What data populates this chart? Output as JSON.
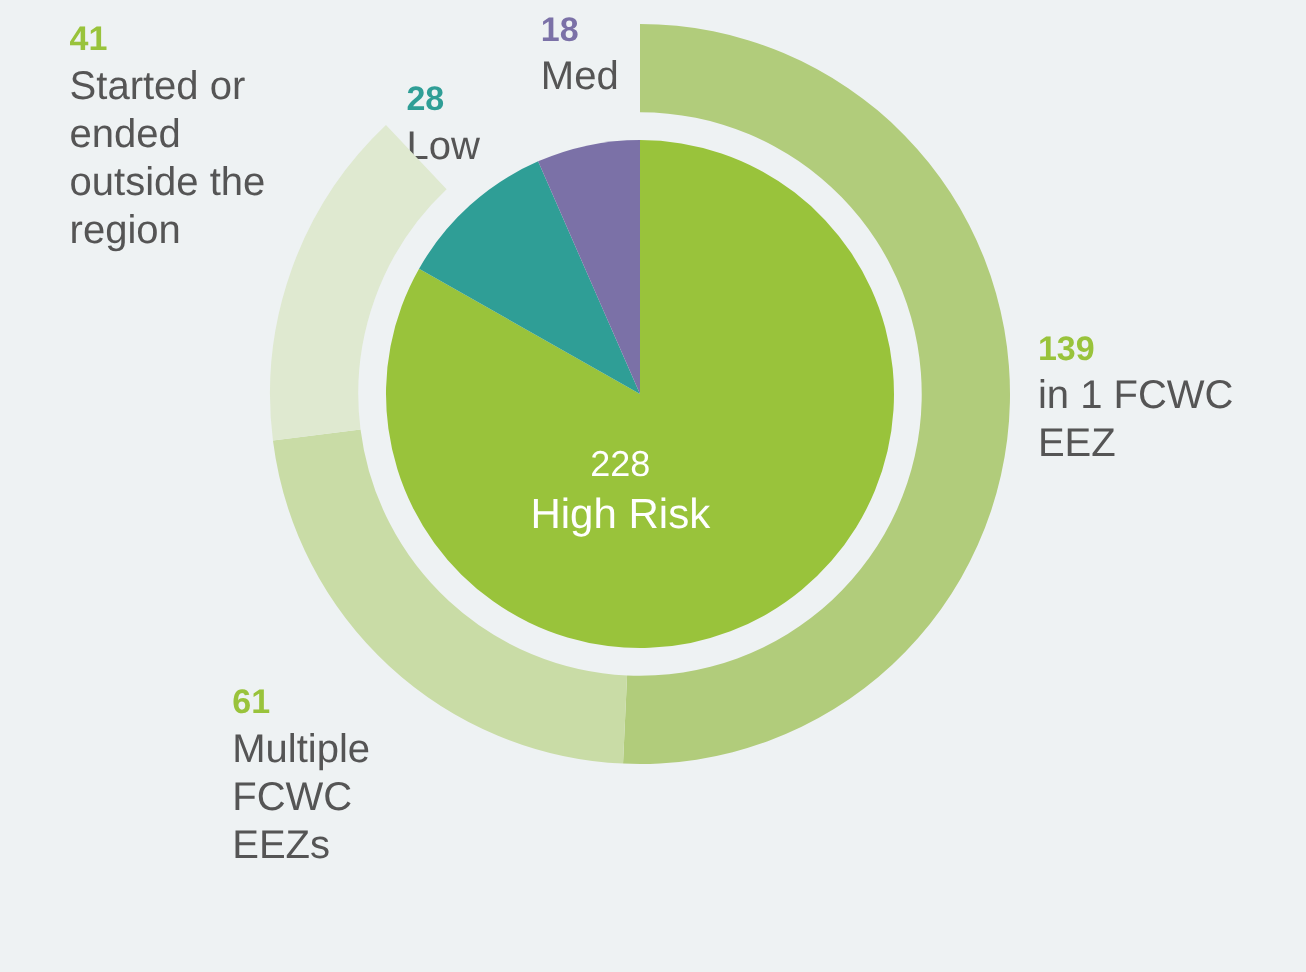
{
  "chart_data": [
    {
      "type": "pie",
      "categories": [
        "High Risk",
        "Low",
        "Med"
      ],
      "values": [
        228,
        28,
        18
      ],
      "colors": [
        "#99c33b",
        "#2f9e96",
        "#7b71a7"
      ],
      "data_labels": true
    },
    {
      "type": "donut",
      "categories": [
        "in 1 FCWC EEZ",
        "Multiple FCWC EEZs",
        "Started or ended outside the region"
      ],
      "values": [
        139,
        61,
        41
      ],
      "colors": [
        "#b1cc7b",
        "#c9dca6",
        "#dfe9d0"
      ],
      "data_labels": true
    }
  ]
}
